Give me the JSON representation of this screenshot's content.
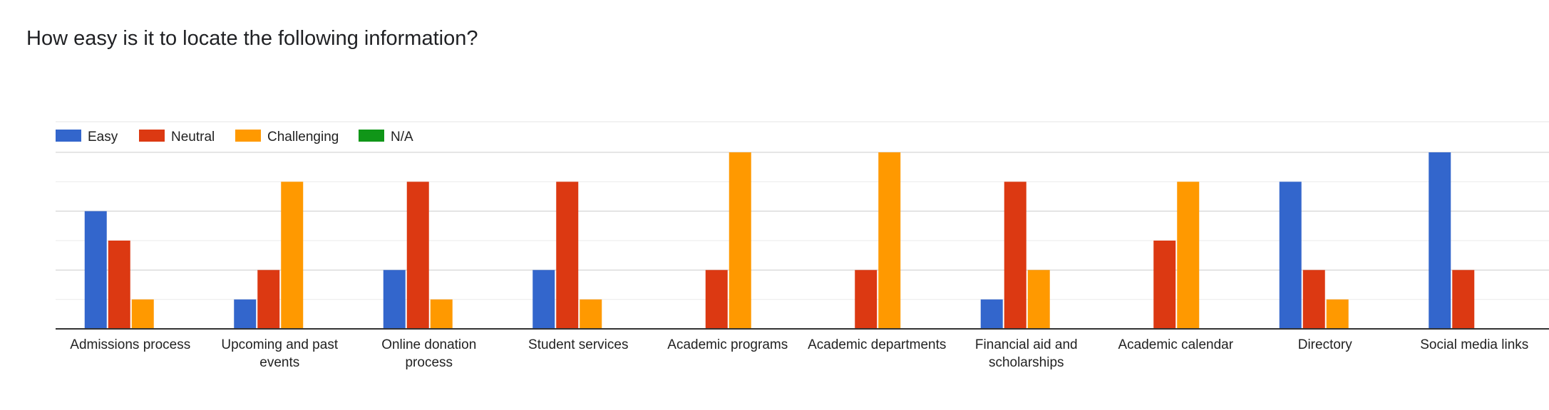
{
  "chart_data": {
    "type": "bar",
    "title": "How easy is it to locate the following information?",
    "categories": [
      [
        "Admissions process"
      ],
      [
        "Upcoming and past",
        "events"
      ],
      [
        "Online donation",
        "process"
      ],
      [
        "Student services"
      ],
      [
        "Academic programs"
      ],
      [
        "Academic departments"
      ],
      [
        "Financial aid and",
        "scholarships"
      ],
      [
        "Academic calendar"
      ],
      [
        "Directory"
      ],
      [
        "Social media links"
      ]
    ],
    "series": [
      {
        "name": "Easy",
        "color": "#3366cc",
        "values": [
          4,
          1,
          2,
          2,
          0,
          0,
          1,
          0,
          5,
          6
        ]
      },
      {
        "name": "Neutral",
        "color": "#dc3912",
        "values": [
          3,
          2,
          5,
          5,
          2,
          2,
          5,
          3,
          2,
          2
        ]
      },
      {
        "name": "Challenging",
        "color": "#ff9900",
        "values": [
          1,
          5,
          1,
          1,
          6,
          6,
          2,
          5,
          1,
          0
        ]
      },
      {
        "name": "N/A",
        "color": "#109618",
        "values": [
          0,
          0,
          0,
          0,
          0,
          0,
          0,
          0,
          0,
          0
        ]
      }
    ],
    "ylim": [
      0,
      6
    ],
    "gridlines": true,
    "legend_position": "top-left",
    "xlabel": "",
    "ylabel": ""
  }
}
